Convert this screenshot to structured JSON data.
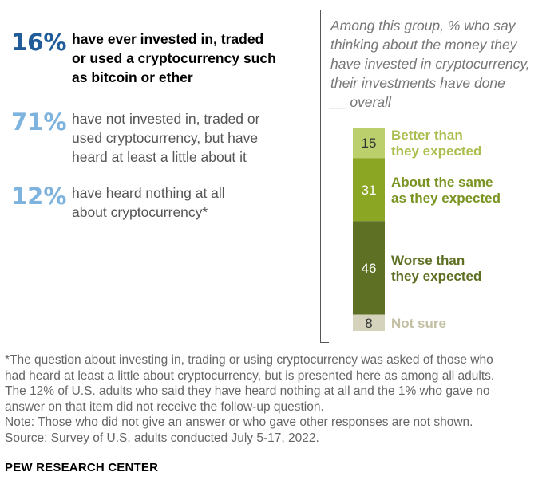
{
  "stats": [
    {
      "pct": "16%",
      "color": "#1f5c99",
      "lines": [
        "have ever invested in, traded",
        "or used a cryptocurrency such",
        "as bitcoin or ether"
      ]
    },
    {
      "pct": "71%",
      "color": "#7eb3de",
      "lines": [
        "have not invested in, traded or",
        "used cryptocurrency, but have",
        "heard at least a little about it"
      ]
    },
    {
      "pct": "12%",
      "color": "#7eb3de",
      "lines": [
        "have heard nothing at all",
        "about cryptocurrency*"
      ]
    }
  ],
  "chart_title_lines": [
    "Among this group, % who say",
    "thinking about the money they",
    "have invested in cryptocurrency,",
    "their investments have done",
    "__ overall"
  ],
  "chart_data": {
    "type": "bar",
    "stacked": true,
    "orientation": "vertical",
    "title": "Among this group, % who say thinking about the money they have invested in cryptocurrency, their investments have done __ overall",
    "categories": [
      "Better than they expected",
      "About the same as they expected",
      "Worse than they expected",
      "Not sure"
    ],
    "values": [
      15,
      31,
      46,
      8
    ],
    "colors": [
      "#bccf6d",
      "#8ba623",
      "#5e7023",
      "#d6d3bd"
    ],
    "value_label_colors": [
      "#333333",
      "#ffffff",
      "#ffffff",
      "#333333"
    ],
    "category_label_colors": [
      "#aabf4f",
      "#7a9422",
      "#5e7023",
      "#c2bfa3"
    ],
    "category_label_lines": [
      [
        "Better than",
        "they expected"
      ],
      [
        "About the same",
        "as they expected"
      ],
      [
        "Worse than",
        "they expected"
      ],
      [
        "Not sure"
      ]
    ]
  },
  "footnote_lines": [
    "*The question about investing in, trading or using cryptocurrency was asked of those who",
    "had heard at least a little about cryptocurrency, but is presented here as among all adults.",
    "The 12% of U.S. adults who said they have heard nothing at all and the 1% who gave no",
    "answer on that item did not receive the follow-up question.",
    "Note: Those who did not give an answer or who gave other responses are not shown.",
    "Source: Survey of U.S. adults conducted July 5-17, 2022."
  ],
  "source_brand": "PEW RESEARCH CENTER"
}
